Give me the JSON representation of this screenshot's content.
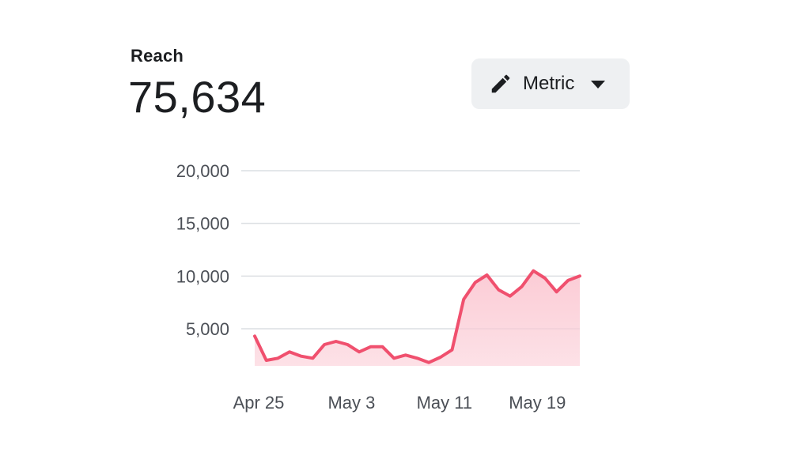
{
  "metric": {
    "label": "Reach",
    "value": "75,634"
  },
  "metric_button": {
    "label": "Metric",
    "icon": "pencil-icon",
    "dropdown_icon": "caret-down-icon"
  },
  "colors": {
    "line": "#f0506e",
    "area": "#fbc9d3",
    "grid": "#dcdfe3"
  },
  "chart_data": {
    "type": "area",
    "y_ticks": [
      5000,
      10000,
      15000,
      20000
    ],
    "y_tick_labels": [
      "5,000",
      "10,000",
      "15,000",
      "20,000"
    ],
    "ylim": [
      1400,
      20000
    ],
    "x_tick_labels": [
      "Apr 25",
      "May 3",
      "May 11",
      "May 19"
    ],
    "x_tick_index": [
      0,
      8,
      16,
      24
    ],
    "grid": true,
    "series": [
      {
        "values": [
          4300,
          2000,
          2200,
          2800,
          2400,
          2200,
          3500,
          3800,
          3500,
          2800,
          3300,
          3300,
          2200,
          2500,
          2200,
          1800,
          2300,
          3000,
          7800,
          9400,
          10100,
          8700,
          8100,
          9000,
          10500,
          9800,
          8500,
          9600,
          10000
        ]
      }
    ]
  }
}
